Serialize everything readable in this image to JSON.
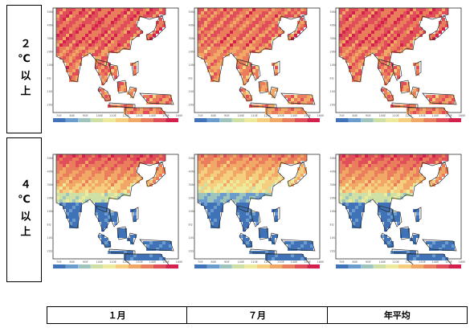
{
  "rows": [
    {
      "label": "２℃以上"
    },
    {
      "label": "４℃以上"
    }
  ],
  "columns": [
    "１月",
    "７月",
    "年平均"
  ],
  "colors": {
    "ocean": "#ffffff",
    "coast": "#2a2a2a",
    "scale": [
      "#3f72b6",
      "#6b9ccd",
      "#9fc4bb",
      "#cfe0a4",
      "#eeea9c",
      "#f5cf7f",
      "#f1a766",
      "#ea7d5c",
      "#e04f59",
      "#d3204c"
    ]
  }
}
